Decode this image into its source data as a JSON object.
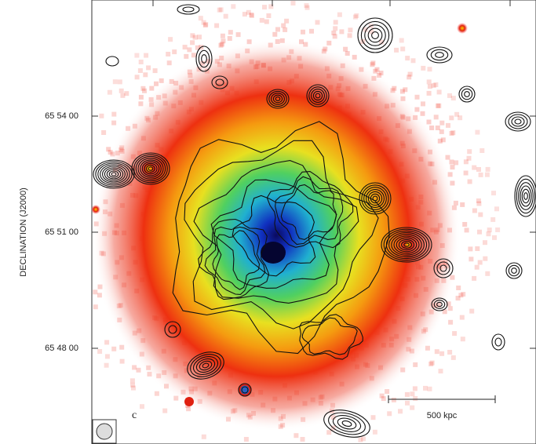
{
  "axis": {
    "label": "DECLINATION (J2000)",
    "ticks": [
      "65 54 00",
      "65 51 00",
      "65 48 00"
    ]
  },
  "panel_label": "c",
  "scale_bar": {
    "label": "500 kpc"
  }
}
